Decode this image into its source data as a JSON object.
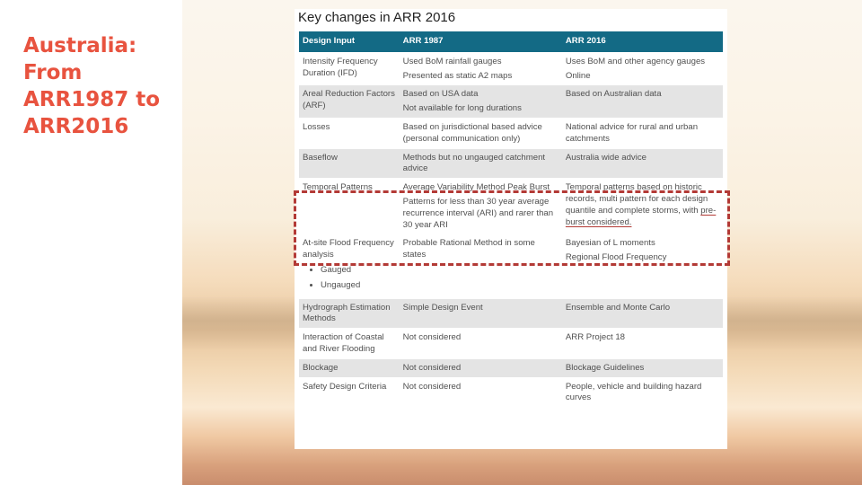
{
  "slide": {
    "title": "Australia: From ARR1987 to ARR2016"
  },
  "document": {
    "heading": "Key changes in ARR 2016",
    "columns": [
      "Design Input",
      "ARR 1987",
      "ARR 2016"
    ],
    "rows": [
      {
        "input": "Intensity Frequency Duration (IFD)",
        "arr1987": [
          "Used BoM rainfall gauges",
          "Presented as static A2 maps"
        ],
        "arr2016": [
          "Uses BoM and other agency gauges",
          "Online"
        ]
      },
      {
        "input": "Areal Reduction Factors (ARF)",
        "arr1987": [
          "Based on USA data",
          "Not available for long durations"
        ],
        "arr2016": [
          "Based on Australian data"
        ]
      },
      {
        "input": "Losses",
        "arr1987": [
          "Based on jurisdictional based advice (personal communication only)"
        ],
        "arr2016": [
          "National advice for rural and urban catchments"
        ]
      },
      {
        "input": "Baseflow",
        "arr1987": [
          "Methods but no ungauged catchment advice"
        ],
        "arr2016": [
          "Australia wide advice"
        ]
      },
      {
        "input": "Temporal Patterns",
        "arr1987": [
          "Average Variability Method Peak Burst",
          "Patterns for less than 30 year average recurrence interval (ARI) and rarer than 30 year ARI"
        ],
        "arr2016_prefix": "Temporal patterns based on historic records, multi pattern for each design quantile and complete storms, with ",
        "arr2016_underlined": "pre-burst considered."
      },
      {
        "input": "At-site Flood Frequency analysis",
        "input_bullets": [
          "Gauged",
          "Ungauged"
        ],
        "arr1987": [
          "Probable Rational Method in some states"
        ],
        "arr2016": [
          "Bayesian of L moments",
          "Regional Flood Frequency"
        ]
      },
      {
        "input": "Hydrograph Estimation Methods",
        "arr1987": [
          "Simple Design Event"
        ],
        "arr2016": [
          "Ensemble and Monte Carlo"
        ]
      },
      {
        "input": "Interaction of Coastal and River Flooding",
        "arr1987": [
          "Not considered"
        ],
        "arr2016": [
          "ARR Project 18"
        ]
      },
      {
        "input": "Blockage",
        "arr1987": [
          "Not considered"
        ],
        "arr2016": [
          "Blockage Guidelines"
        ]
      },
      {
        "input": "Safety Design Criteria",
        "arr1987": [
          "Not considered"
        ],
        "arr2016": [
          "People, vehicle and building hazard curves"
        ]
      }
    ]
  },
  "colors": {
    "title": "#e8533f",
    "table_header": "#136a85",
    "row_shade": "#e4e4e4",
    "highlight": "#b33a36"
  }
}
